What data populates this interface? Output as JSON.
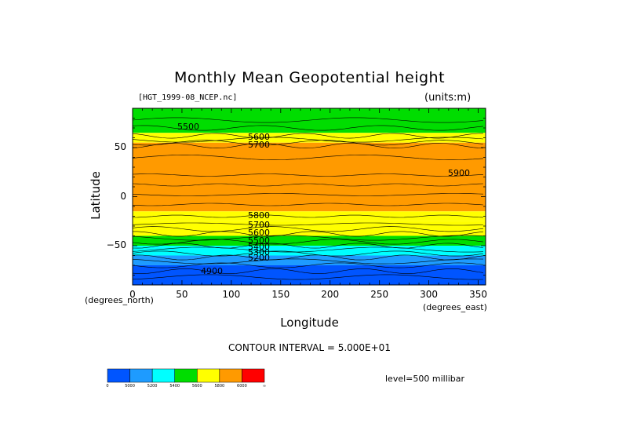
{
  "chart_data": {
    "type": "heatmap",
    "title": "Monthly Mean Geopotential height",
    "subtitle_left": "[HGT_1999-08_NCEP.nc]",
    "units": "(units:m)",
    "ylabel": "Latitude",
    "xlabel": "Longitude",
    "x_unit_label": "(degrees_east)",
    "y_unit_label": "(degrees_north)",
    "xlim": [
      0,
      357.5
    ],
    "ylim": [
      -90,
      90
    ],
    "xticks": [
      0,
      50,
      100,
      150,
      200,
      250,
      300,
      350
    ],
    "yticks": [
      50,
      0,
      -50
    ],
    "ytick_labels": [
      "50",
      "0",
      "−50"
    ],
    "contour_interval_text": "CONTOUR INTERVAL = 5.000E+01",
    "level_text": "level=500 millibar",
    "contour_labels": [
      "5500",
      "5600",
      "5700",
      "5900",
      "5800",
      "5700",
      "5600",
      "5500",
      "5400",
      "5300",
      "5200",
      "4900"
    ],
    "colorbar": {
      "colors": [
        "#0055ff",
        "#1e9bff",
        "#00ffff",
        "#00dd00",
        "#ffff00",
        "#ff9a00",
        "#ff0000"
      ],
      "labels": [
        "0",
        "5000",
        "5200",
        "5400",
        "5600",
        "5800",
        "6000",
        "∞"
      ]
    },
    "bands": [
      {
        "lat_top": 90,
        "lat_bottom": 65,
        "color": "#00dd00"
      },
      {
        "lat_top": 65,
        "lat_bottom": 55,
        "color": "#ffff00"
      },
      {
        "lat_top": 55,
        "lat_bottom": -15,
        "color": "#ff9a00"
      },
      {
        "lat_top": -15,
        "lat_bottom": -25,
        "color": "#ffff00"
      },
      {
        "lat_top": -25,
        "lat_bottom": -40,
        "color": "#ffff00"
      },
      {
        "lat_top": -40,
        "lat_bottom": -50,
        "color": "#00dd00"
      },
      {
        "lat_top": -50,
        "lat_bottom": -60,
        "color": "#00ffff"
      },
      {
        "lat_top": -60,
        "lat_bottom": -70,
        "color": "#1e9bff"
      },
      {
        "lat_top": -70,
        "lat_bottom": -90,
        "color": "#0055ff"
      }
    ]
  }
}
